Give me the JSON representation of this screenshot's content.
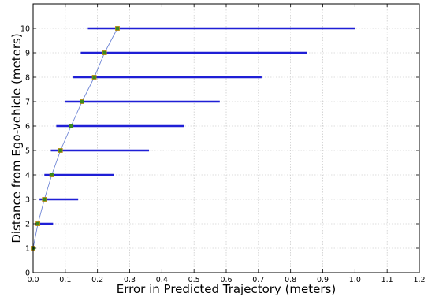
{
  "chart_data": {
    "type": "scatter",
    "title": "",
    "xlabel": "Error in Predicted Trajectory (meters)",
    "ylabel": "Distance from Ego-vehicle (meters)",
    "xlim": [
      0.0,
      1.2
    ],
    "ylim": [
      0,
      11
    ],
    "grid": true,
    "x_ticks": [
      "0.0",
      "0.1",
      "0.2",
      "0.3",
      "0.4",
      "0.5",
      "0.6",
      "0.7",
      "0.8",
      "0.9",
      "1.0",
      "1.1",
      "1.2"
    ],
    "y_ticks": [
      "0",
      "1",
      "2",
      "3",
      "4",
      "5",
      "6",
      "7",
      "8",
      "9",
      "10"
    ],
    "points": [
      {
        "y": 1,
        "x": 0.0,
        "x_min": 0.0,
        "x_max": 0.0
      },
      {
        "y": 2,
        "x": 0.015,
        "x_min": 0.005,
        "x_max": 0.062
      },
      {
        "y": 3,
        "x": 0.035,
        "x_min": 0.02,
        "x_max": 0.14
      },
      {
        "y": 4,
        "x": 0.058,
        "x_min": 0.035,
        "x_max": 0.25
      },
      {
        "y": 5,
        "x": 0.085,
        "x_min": 0.055,
        "x_max": 0.36
      },
      {
        "y": 6,
        "x": 0.118,
        "x_min": 0.072,
        "x_max": 0.47
      },
      {
        "y": 7,
        "x": 0.152,
        "x_min": 0.098,
        "x_max": 0.58
      },
      {
        "y": 8,
        "x": 0.19,
        "x_min": 0.125,
        "x_max": 0.71
      },
      {
        "y": 9,
        "x": 0.222,
        "x_min": 0.148,
        "x_max": 0.85
      },
      {
        "y": 10,
        "x": 0.262,
        "x_min": 0.17,
        "x_max": 1.0
      }
    ],
    "colors": {
      "error_bar": "#1f1fd6",
      "line": "#6f86d6",
      "marker_fill": "#3a8a1e",
      "marker_edge": "#b8860b",
      "grid": "#bdbdbd"
    }
  }
}
